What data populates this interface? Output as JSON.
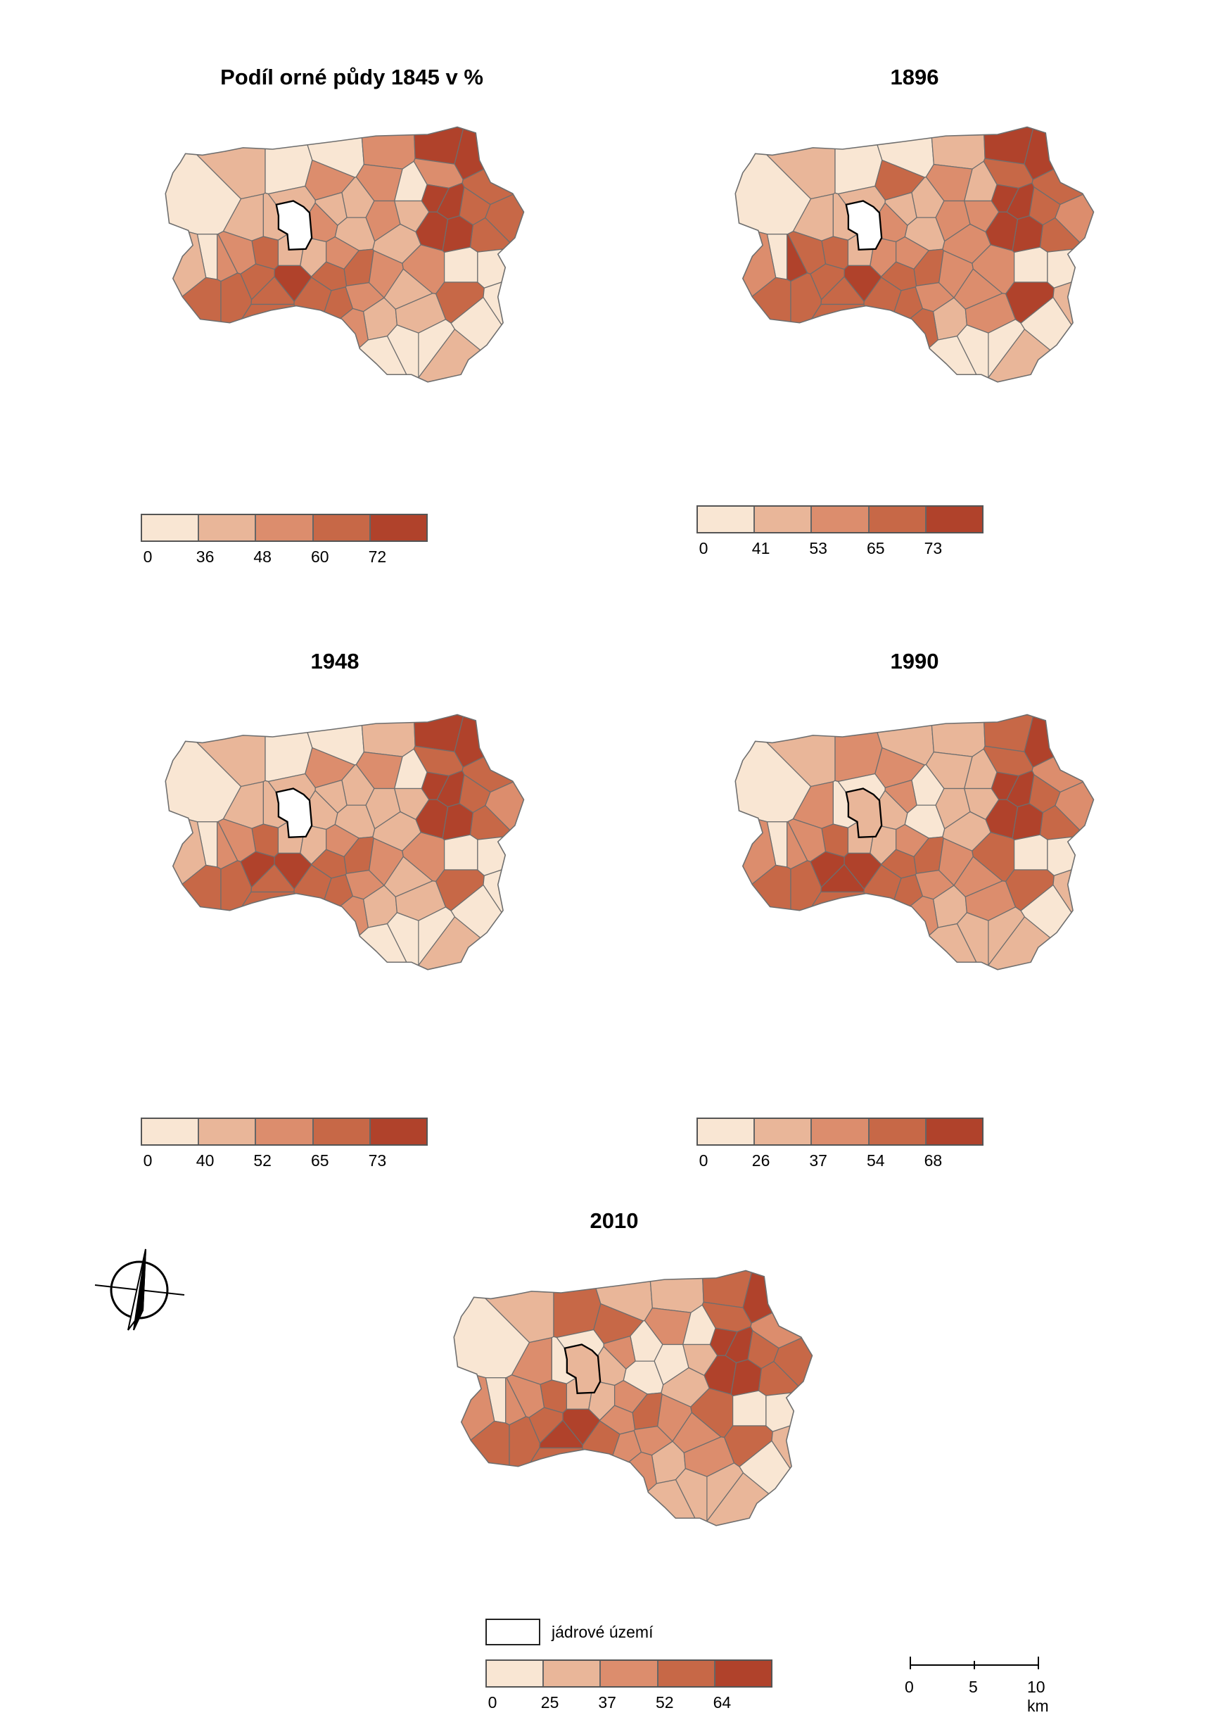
{
  "palette": [
    "#f9e6d3",
    "#e9b699",
    "#dc8d6d",
    "#c76847",
    "#b0422b"
  ],
  "maps": [
    {
      "id": "1845",
      "title": "Podíl orné půdy 1845 v %",
      "legend_breaks": [
        "0",
        "36",
        "48",
        "60",
        "72"
      ]
    },
    {
      "id": "1896",
      "title": "1896",
      "legend_breaks": [
        "0",
        "41",
        "53",
        "65",
        "73"
      ]
    },
    {
      "id": "1948",
      "title": "1948",
      "legend_breaks": [
        "0",
        "40",
        "52",
        "65",
        "73"
      ]
    },
    {
      "id": "1990",
      "title": "1990",
      "legend_breaks": [
        "0",
        "26",
        "37",
        "54",
        "68"
      ]
    },
    {
      "id": "2010",
      "title": "2010",
      "legend_breaks": [
        "0",
        "25",
        "37",
        "52",
        "64"
      ]
    }
  ],
  "core_legend_label": "jádrové území",
  "scale": {
    "labels": [
      "0",
      "5",
      "10 km"
    ]
  },
  "icons": {
    "north_arrow": "north-arrow-icon"
  }
}
